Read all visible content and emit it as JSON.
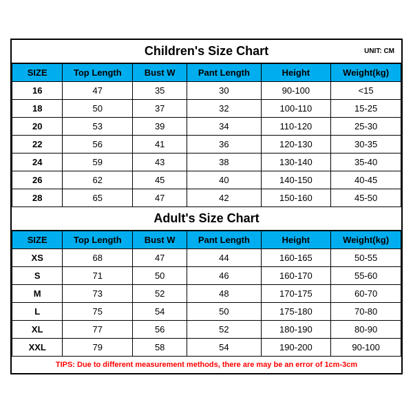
{
  "children": {
    "title": "Children's Size Chart",
    "unit": "UNIT: CM",
    "columns": [
      "SIZE",
      "Top Length",
      "Bust W",
      "Pant Length",
      "Height",
      "Weight(kg)"
    ],
    "rows": [
      [
        "16",
        "47",
        "35",
        "30",
        "90-100",
        "<15"
      ],
      [
        "18",
        "50",
        "37",
        "32",
        "100-110",
        "15-25"
      ],
      [
        "20",
        "53",
        "39",
        "34",
        "110-120",
        "25-30"
      ],
      [
        "22",
        "56",
        "41",
        "36",
        "120-130",
        "30-35"
      ],
      [
        "24",
        "59",
        "43",
        "38",
        "130-140",
        "35-40"
      ],
      [
        "26",
        "62",
        "45",
        "40",
        "140-150",
        "40-45"
      ],
      [
        "28",
        "65",
        "47",
        "42",
        "150-160",
        "45-50"
      ]
    ]
  },
  "adult": {
    "title": "Adult's Size Chart",
    "columns": [
      "SIZE",
      "Top Length",
      "Bust W",
      "Pant Length",
      "Height",
      "Weight(kg)"
    ],
    "rows": [
      [
        "XS",
        "68",
        "47",
        "44",
        "160-165",
        "50-55"
      ],
      [
        "S",
        "71",
        "50",
        "46",
        "160-170",
        "55-60"
      ],
      [
        "M",
        "73",
        "52",
        "48",
        "170-175",
        "60-70"
      ],
      [
        "L",
        "75",
        "54",
        "50",
        "175-180",
        "70-80"
      ],
      [
        "XL",
        "77",
        "56",
        "52",
        "180-190",
        "80-90"
      ],
      [
        "XXL",
        "79",
        "58",
        "54",
        "190-200",
        "90-100"
      ]
    ]
  },
  "tips": "TIPS: Due to different measurement methods, there are may be an error of 1cm-3cm",
  "colors": {
    "header_bg": "#00aeef",
    "border": "#000000",
    "tips_color": "#ff0000",
    "background": "#ffffff"
  }
}
